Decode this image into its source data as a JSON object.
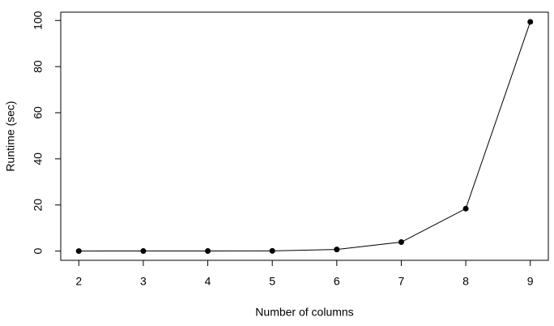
{
  "chart_data": {
    "type": "line",
    "xlabel": "Number of columns",
    "ylabel": "Runtime (sec)",
    "x": [
      2,
      3,
      4,
      5,
      6,
      7,
      8,
      9
    ],
    "values": [
      0.02,
      0.03,
      0.05,
      0.1,
      0.7,
      3.9,
      18.4,
      99.4
    ],
    "color": "#000000",
    "xlim": [
      1.72,
      9.28
    ],
    "ylim": [
      -4,
      103.6
    ],
    "xticks": [
      2,
      3,
      4,
      5,
      6,
      7,
      8,
      9
    ],
    "yticks": [
      0,
      20,
      40,
      60,
      80,
      100
    ]
  }
}
